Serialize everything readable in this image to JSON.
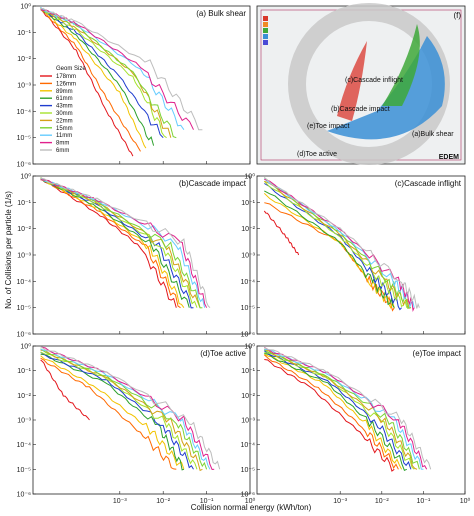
{
  "figure": {
    "ylabel": "No. of Collisions per particle (1/s)",
    "xlabel": "Collision normal energy (kWh/ton)"
  },
  "sim_panel": {
    "tag": "(f)",
    "labels": [
      "(c)Cascade inflight",
      "(b)Cascade impact",
      "(e)Toe impact",
      "(a)Bulk shear",
      "(d)Toe active"
    ],
    "brand": "EDEM",
    "colors": {
      "red": "#d9362b",
      "green": "#3ea83a",
      "blue": "#3a8fd6",
      "shell": "#c9c9c9"
    }
  },
  "legend": {
    "title": "Geom Size",
    "items": [
      {
        "label": "178mm",
        "color": "#e3161c"
      },
      {
        "label": "126mm",
        "color": "#ff6a00"
      },
      {
        "label": "89mm",
        "color": "#f2c300"
      },
      {
        "label": "61mm",
        "color": "#2ca02c"
      },
      {
        "label": "43mm",
        "color": "#1f3ccf"
      },
      {
        "label": "30mm",
        "color": "#a6e22e"
      },
      {
        "label": "22mm",
        "color": "#d4a017"
      },
      {
        "label": "15mm",
        "color": "#7bd334"
      },
      {
        "label": "11mm",
        "color": "#66ccff"
      },
      {
        "label": "8mm",
        "color": "#e0208c"
      },
      {
        "label": "6mm",
        "color": "#bdbdbd"
      }
    ]
  },
  "chart_data": [
    {
      "type": "line",
      "title": "(a) Bulk shear",
      "xscale": "log",
      "yscale": "log",
      "xlim": [
        1e-05,
        1
      ],
      "ylim": [
        1e-06,
        1
      ],
      "xticks": [
        "10⁻³",
        "10⁻²",
        "10⁻¹",
        "10⁰"
      ],
      "yticks": [
        "10⁻⁶",
        "10⁻⁵",
        "10⁻⁴",
        "10⁻³",
        "10⁻²",
        "10⁻¹",
        "10⁰"
      ],
      "series": [
        {
          "name": "178mm",
          "x": [
            1.5e-05,
            0.0001,
            0.0005,
            0.002
          ],
          "y": [
            0.8,
            0.02,
            0.0001,
            2e-06
          ]
        },
        {
          "name": "126mm",
          "x": [
            1.5e-05,
            0.0001,
            0.0005,
            0.003
          ],
          "y": [
            0.8,
            0.03,
            0.0003,
            3e-06
          ]
        },
        {
          "name": "89mm",
          "x": [
            1.5e-05,
            0.0001,
            0.001,
            0.004
          ],
          "y": [
            0.8,
            0.05,
            0.0005,
            4e-06
          ]
        },
        {
          "name": "61mm",
          "x": [
            1.5e-05,
            0.0001,
            0.001,
            0.006
          ],
          "y": [
            0.8,
            0.08,
            0.001,
            5e-06
          ]
        },
        {
          "name": "43mm",
          "x": [
            1.5e-05,
            0.0001,
            0.001,
            0.01
          ],
          "y": [
            0.8,
            0.1,
            0.002,
            1e-05
          ]
        },
        {
          "name": "30mm",
          "x": [
            1.5e-05,
            0.0001,
            0.002,
            0.012
          ],
          "y": [
            0.8,
            0.12,
            0.002,
            1e-05
          ]
        },
        {
          "name": "22mm",
          "x": [
            1.5e-05,
            0.0001,
            0.002,
            0.015
          ],
          "y": [
            0.8,
            0.15,
            0.003,
            1e-05
          ]
        },
        {
          "name": "15mm",
          "x": [
            1.5e-05,
            0.0001,
            0.002,
            0.02
          ],
          "y": [
            0.8,
            0.18,
            0.003,
            1e-05
          ]
        },
        {
          "name": "11mm",
          "x": [
            1.5e-05,
            0.0001,
            0.003,
            0.03
          ],
          "y": [
            0.8,
            0.2,
            0.004,
            2e-05
          ]
        },
        {
          "name": "8mm",
          "x": [
            1.5e-05,
            0.0001,
            0.003,
            0.05
          ],
          "y": [
            0.8,
            0.22,
            0.005,
            2e-05
          ]
        },
        {
          "name": "6mm",
          "x": [
            1.5e-05,
            0.0001,
            0.005,
            0.08
          ],
          "y": [
            0.8,
            0.25,
            0.006,
            2e-05
          ]
        }
      ]
    },
    {
      "type": "line",
      "title": "(b)Cascade impact",
      "xscale": "log",
      "yscale": "log",
      "xlim": [
        1e-05,
        1
      ],
      "ylim": [
        1e-06,
        1
      ],
      "xticks": [
        "10⁻³",
        "10⁻²",
        "10⁻¹",
        "10⁰"
      ],
      "yticks": [
        "10⁻⁶",
        "10⁻⁵",
        "10⁻⁴",
        "10⁻³",
        "10⁻²",
        "10⁻¹",
        "10⁰"
      ],
      "series": [
        {
          "name": "178mm",
          "x": [
            1.5e-05,
            0.0003,
            0.003,
            0.02
          ],
          "y": [
            0.8,
            0.04,
            0.002,
            1e-05
          ]
        },
        {
          "name": "126mm",
          "x": [
            1.5e-05,
            0.0003,
            0.004,
            0.025
          ],
          "y": [
            0.8,
            0.05,
            0.002,
            1e-05
          ]
        },
        {
          "name": "89mm",
          "x": [
            1.5e-05,
            0.0003,
            0.005,
            0.03
          ],
          "y": [
            0.8,
            0.06,
            0.002,
            1e-05
          ]
        },
        {
          "name": "61mm",
          "x": [
            1.5e-05,
            0.0003,
            0.006,
            0.04
          ],
          "y": [
            0.8,
            0.07,
            0.002,
            1e-05
          ]
        },
        {
          "name": "43mm",
          "x": [
            1.5e-05,
            0.0003,
            0.008,
            0.05
          ],
          "y": [
            0.8,
            0.08,
            0.002,
            1e-05
          ]
        },
        {
          "name": "30mm",
          "x": [
            1.5e-05,
            0.0003,
            0.01,
            0.06
          ],
          "y": [
            0.8,
            0.09,
            0.002,
            1e-05
          ]
        },
        {
          "name": "22mm",
          "x": [
            1.5e-05,
            0.0003,
            0.012,
            0.07
          ],
          "y": [
            0.8,
            0.1,
            0.002,
            1e-05
          ]
        },
        {
          "name": "15mm",
          "x": [
            1.5e-05,
            0.0003,
            0.015,
            0.08
          ],
          "y": [
            0.8,
            0.1,
            0.002,
            1e-05
          ]
        },
        {
          "name": "11mm",
          "x": [
            1.5e-05,
            0.0003,
            0.02,
            0.09
          ],
          "y": [
            0.8,
            0.12,
            0.003,
            1e-05
          ]
        },
        {
          "name": "8mm",
          "x": [
            1.5e-05,
            0.0003,
            0.025,
            0.1
          ],
          "y": [
            0.8,
            0.12,
            0.003,
            1e-05
          ]
        },
        {
          "name": "6mm",
          "x": [
            1.5e-05,
            0.0003,
            0.03,
            0.12
          ],
          "y": [
            0.8,
            0.13,
            0.003,
            1e-05
          ]
        }
      ]
    },
    {
      "type": "line",
      "title": "(c)Cascade inflight",
      "xscale": "log",
      "yscale": "log",
      "xlim": [
        1e-05,
        1
      ],
      "ylim": [
        1e-06,
        1
      ],
      "xticks": [
        "10⁻³",
        "10⁻²",
        "10⁻¹",
        "10⁰"
      ],
      "yticks": [
        "10⁻⁶",
        "10⁻⁵",
        "10⁻⁴",
        "10⁻³",
        "10⁻²",
        "10⁻¹",
        "10⁰"
      ],
      "series": [
        {
          "name": "178mm",
          "x": [
            1.5e-05,
            5e-05,
            0.0001
          ],
          "y": [
            0.05,
            0.005,
            0.001
          ]
        },
        {
          "name": "126mm",
          "x": [
            1.5e-05,
            0.001,
            0.005,
            0.02
          ],
          "y": [
            0.1,
            0.003,
            0.0001,
            1e-05
          ]
        },
        {
          "name": "89mm",
          "x": [
            1.5e-05,
            0.001,
            0.005,
            0.02
          ],
          "y": [
            0.2,
            0.003,
            0.0001,
            1e-05
          ]
        },
        {
          "name": "61mm",
          "x": [
            1.5e-05,
            0.001,
            0.006,
            0.02
          ],
          "y": [
            0.3,
            0.003,
            0.0001,
            1e-05
          ]
        },
        {
          "name": "43mm",
          "x": [
            1.5e-05,
            0.001,
            0.008,
            0.03
          ],
          "y": [
            0.5,
            0.005,
            0.0001,
            1e-05
          ]
        },
        {
          "name": "30mm",
          "x": [
            1.5e-05,
            0.001,
            0.01,
            0.04
          ],
          "y": [
            0.6,
            0.005,
            0.0001,
            1e-05
          ]
        },
        {
          "name": "22mm",
          "x": [
            1.5e-05,
            0.001,
            0.012,
            0.05
          ],
          "y": [
            0.7,
            0.006,
            0.0001,
            1e-05
          ]
        },
        {
          "name": "15mm",
          "x": [
            1.5e-05,
            0.001,
            0.015,
            0.05
          ],
          "y": [
            0.8,
            0.007,
            0.0001,
            1e-05
          ]
        },
        {
          "name": "11mm",
          "x": [
            1.5e-05,
            0.001,
            0.02,
            0.06
          ],
          "y": [
            0.8,
            0.008,
            0.0001,
            1e-05
          ]
        },
        {
          "name": "8mm",
          "x": [
            1.5e-05,
            0.001,
            0.025,
            0.06
          ],
          "y": [
            0.8,
            0.009,
            0.0001,
            1e-05
          ]
        },
        {
          "name": "6mm",
          "x": [
            1.5e-05,
            0.001,
            0.03,
            0.08
          ],
          "y": [
            0.8,
            0.01,
            0.0001,
            1e-05
          ]
        }
      ]
    },
    {
      "type": "line",
      "title": "(d)Toe active",
      "xscale": "log",
      "yscale": "log",
      "xlim": [
        1e-05,
        1
      ],
      "ylim": [
        1e-06,
        1
      ],
      "xticks": [
        "10⁻³",
        "10⁻²",
        "10⁻¹",
        "10⁰"
      ],
      "yticks": [
        "10⁻⁶",
        "10⁻⁵",
        "10⁻⁴",
        "10⁻³",
        "10⁻²",
        "10⁻¹",
        "10⁰"
      ],
      "series": [
        {
          "name": "178mm",
          "x": [
            1.5e-05,
            5e-05,
            0.0002
          ],
          "y": [
            0.3,
            0.01,
            0.001
          ]
        },
        {
          "name": "126mm",
          "x": [
            1.5e-05,
            0.0002,
            0.003,
            0.02
          ],
          "y": [
            0.3,
            0.02,
            0.0003,
            1e-05
          ]
        },
        {
          "name": "89mm",
          "x": [
            1.5e-05,
            0.0003,
            0.005,
            0.03
          ],
          "y": [
            0.4,
            0.02,
            0.0004,
            1e-05
          ]
        },
        {
          "name": "61mm",
          "x": [
            1.5e-05,
            0.0005,
            0.008,
            0.03
          ],
          "y": [
            0.5,
            0.03,
            0.0005,
            1e-05
          ]
        },
        {
          "name": "43mm",
          "x": [
            1.5e-05,
            0.0005,
            0.01,
            0.05
          ],
          "y": [
            0.5,
            0.04,
            0.0006,
            1e-05
          ]
        },
        {
          "name": "30mm",
          "x": [
            1.5e-05,
            0.0005,
            0.012,
            0.06
          ],
          "y": [
            0.6,
            0.05,
            0.0007,
            1e-05
          ]
        },
        {
          "name": "22mm",
          "x": [
            1.5e-05,
            0.0005,
            0.015,
            0.08
          ],
          "y": [
            0.7,
            0.05,
            0.0008,
            1e-05
          ]
        },
        {
          "name": "15mm",
          "x": [
            1.5e-05,
            0.0005,
            0.02,
            0.1
          ],
          "y": [
            0.7,
            0.06,
            0.0009,
            1e-05
          ]
        },
        {
          "name": "11mm",
          "x": [
            1.5e-05,
            0.0005,
            0.025,
            0.12
          ],
          "y": [
            0.8,
            0.07,
            0.001,
            1e-05
          ]
        },
        {
          "name": "8mm",
          "x": [
            1.5e-05,
            0.0005,
            0.03,
            0.15
          ],
          "y": [
            0.9,
            0.08,
            0.001,
            1e-05
          ]
        },
        {
          "name": "6mm",
          "x": [
            1.5e-05,
            0.0005,
            0.04,
            0.2
          ],
          "y": [
            0.9,
            0.09,
            0.001,
            1e-05
          ]
        }
      ]
    },
    {
      "type": "line",
      "title": "(e)Toe impact",
      "xscale": "log",
      "yscale": "log",
      "xlim": [
        1e-05,
        1
      ],
      "ylim": [
        1e-06,
        1
      ],
      "xticks": [
        "10⁻³",
        "10⁻²",
        "10⁻¹",
        "10⁰"
      ],
      "yticks": [
        "10⁻⁶",
        "10⁻⁵",
        "10⁻⁴",
        "10⁻³",
        "10⁻²",
        "10⁻¹",
        "10⁰"
      ],
      "series": [
        {
          "name": "178mm",
          "x": [
            1.5e-05,
            0.0002,
            0.003,
            0.02
          ],
          "y": [
            0.3,
            0.02,
            0.0003,
            1e-05
          ]
        },
        {
          "name": "126mm",
          "x": [
            1.5e-05,
            0.0003,
            0.004,
            0.025
          ],
          "y": [
            0.4,
            0.02,
            0.0004,
            1e-05
          ]
        },
        {
          "name": "89mm",
          "x": [
            1.5e-05,
            0.0004,
            0.005,
            0.03
          ],
          "y": [
            0.5,
            0.03,
            0.0005,
            1e-05
          ]
        },
        {
          "name": "61mm",
          "x": [
            1.5e-05,
            0.0005,
            0.006,
            0.04
          ],
          "y": [
            0.5,
            0.03,
            0.0006,
            1e-05
          ]
        },
        {
          "name": "43mm",
          "x": [
            1.5e-05,
            0.0005,
            0.008,
            0.05
          ],
          "y": [
            0.6,
            0.04,
            0.0007,
            1e-05
          ]
        },
        {
          "name": "30mm",
          "x": [
            1.5e-05,
            0.0005,
            0.01,
            0.06
          ],
          "y": [
            0.6,
            0.05,
            0.0008,
            1e-05
          ]
        },
        {
          "name": "22mm",
          "x": [
            1.5e-05,
            0.0005,
            0.012,
            0.07
          ],
          "y": [
            0.7,
            0.05,
            0.0009,
            1e-05
          ]
        },
        {
          "name": "15mm",
          "x": [
            1.5e-05,
            0.0005,
            0.015,
            0.08
          ],
          "y": [
            0.7,
            0.06,
            0.001,
            1e-05
          ]
        },
        {
          "name": "11mm",
          "x": [
            1.5e-05,
            0.0005,
            0.02,
            0.1
          ],
          "y": [
            0.8,
            0.07,
            0.001,
            1e-05
          ]
        },
        {
          "name": "8mm",
          "x": [
            1.5e-05,
            0.0005,
            0.025,
            0.12
          ],
          "y": [
            0.8,
            0.08,
            0.001,
            1e-05
          ]
        },
        {
          "name": "6mm",
          "x": [
            1.5e-05,
            0.0005,
            0.03,
            0.15
          ],
          "y": [
            0.9,
            0.09,
            0.001,
            1e-05
          ]
        }
      ]
    }
  ]
}
